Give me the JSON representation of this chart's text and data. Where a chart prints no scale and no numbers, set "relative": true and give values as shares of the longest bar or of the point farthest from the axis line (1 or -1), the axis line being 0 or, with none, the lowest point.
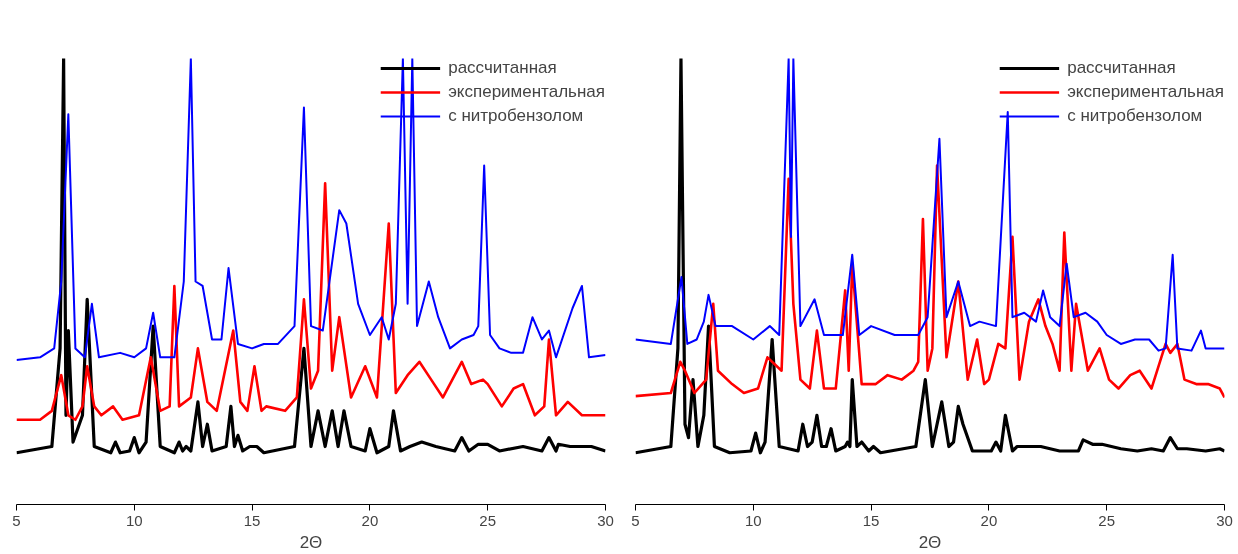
{
  "chart_data": [
    {
      "type": "line",
      "relative": true,
      "xlabel": "2Θ",
      "xlim": [
        5,
        30
      ],
      "xticks": [
        5,
        10,
        15,
        20,
        25,
        30
      ],
      "legend": "top right",
      "tick_labels": "x",
      "series": [
        {
          "name": "рассчитанная",
          "color": "#000000",
          "x": [
            5,
            6.5,
            6.85,
            7.0,
            7.1,
            7.2,
            7.4,
            7.8,
            8.0,
            8.3,
            9.0,
            9.2,
            9.4,
            9.8,
            10.0,
            10.2,
            10.5,
            10.8,
            11.1,
            11.7,
            11.9,
            12.05,
            12.2,
            12.4,
            12.7,
            12.9,
            13.1,
            13.3,
            13.9,
            14.1,
            14.25,
            14.4,
            14.6,
            14.9,
            15.2,
            15.5,
            16.8,
            17.2,
            17.5,
            17.8,
            18.1,
            18.4,
            18.65,
            18.9,
            19.2,
            19.8,
            20.0,
            20.3,
            20.8,
            21.0,
            21.3,
            21.7,
            22.2,
            22.8,
            23.6,
            23.9,
            24.2,
            24.6,
            25.0,
            25.5,
            26.5,
            27.3,
            27.6,
            27.9,
            28.0,
            28.5,
            29.4,
            30
          ],
          "values": [
            0.116,
            0.13,
            0.35,
            1.0,
            0.2,
            0.39,
            0.14,
            0.2,
            0.46,
            0.13,
            0.116,
            0.14,
            0.116,
            0.12,
            0.15,
            0.116,
            0.14,
            0.4,
            0.13,
            0.116,
            0.14,
            0.12,
            0.13,
            0.12,
            0.23,
            0.13,
            0.18,
            0.12,
            0.13,
            0.22,
            0.13,
            0.155,
            0.12,
            0.13,
            0.13,
            0.116,
            0.13,
            0.35,
            0.13,
            0.21,
            0.13,
            0.21,
            0.13,
            0.21,
            0.13,
            0.12,
            0.17,
            0.116,
            0.13,
            0.21,
            0.12,
            0.13,
            0.14,
            0.13,
            0.12,
            0.15,
            0.12,
            0.135,
            0.135,
            0.12,
            0.13,
            0.12,
            0.15,
            0.12,
            0.135,
            0.13,
            0.13,
            0.12
          ]
        },
        {
          "name": "экспериментальная",
          "color": "#ff0000",
          "x": [
            5,
            6.0,
            6.5,
            6.9,
            7.2,
            7.5,
            7.8,
            8.0,
            8.3,
            8.6,
            9.1,
            9.5,
            10.2,
            10.7,
            11.1,
            11.5,
            11.7,
            11.9,
            12.4,
            12.7,
            13.1,
            13.5,
            14.2,
            14.5,
            14.8,
            15.1,
            15.4,
            15.6,
            16.4,
            16.9,
            17.2,
            17.5,
            17.8,
            18.1,
            18.4,
            18.7,
            19.2,
            19.8,
            20.3,
            20.8,
            21.1,
            21.6,
            22.1,
            22.6,
            23.1,
            23.6,
            23.9,
            24.3,
            24.8,
            25.0,
            25.6,
            26.1,
            26.5,
            27.0,
            27.4,
            27.6,
            27.9,
            28.4,
            29.0,
            30
          ],
          "values": [
            0.19,
            0.19,
            0.21,
            0.29,
            0.2,
            0.19,
            0.22,
            0.31,
            0.22,
            0.2,
            0.22,
            0.19,
            0.2,
            0.33,
            0.21,
            0.22,
            0.49,
            0.22,
            0.24,
            0.35,
            0.23,
            0.21,
            0.39,
            0.23,
            0.21,
            0.31,
            0.21,
            0.22,
            0.21,
            0.24,
            0.46,
            0.26,
            0.3,
            0.72,
            0.3,
            0.42,
            0.24,
            0.31,
            0.24,
            0.63,
            0.25,
            0.29,
            0.32,
            0.28,
            0.24,
            0.29,
            0.32,
            0.27,
            0.28,
            0.27,
            0.22,
            0.26,
            0.27,
            0.2,
            0.22,
            0.37,
            0.2,
            0.23,
            0.2,
            0.2
          ]
        },
        {
          "name": "с нитробензолом",
          "color": "#0000ff",
          "x": [
            5,
            6.0,
            6.6,
            6.9,
            7.2,
            7.5,
            7.9,
            8.2,
            8.5,
            9.4,
            10.0,
            10.5,
            10.8,
            11.1,
            11.7,
            12.1,
            12.4,
            12.6,
            12.9,
            13.3,
            13.7,
            14.0,
            14.4,
            15.0,
            15.5,
            16.1,
            16.8,
            17.2,
            17.5,
            18.0,
            18.7,
            19.0,
            19.5,
            20.0,
            20.5,
            20.8,
            21.1,
            21.4,
            21.6,
            21.8,
            22.0,
            22.5,
            22.9,
            23.4,
            23.9,
            24.4,
            24.6,
            24.85,
            25.1,
            25.5,
            26.0,
            26.5,
            26.9,
            27.3,
            27.6,
            27.9,
            28.6,
            29.0,
            29.3,
            30
          ],
          "values": [
            0.324,
            0.33,
            0.35,
            0.5,
            0.875,
            0.35,
            0.33,
            0.45,
            0.33,
            0.34,
            0.33,
            0.35,
            0.43,
            0.33,
            0.33,
            0.5,
            1.0,
            0.5,
            0.49,
            0.37,
            0.37,
            0.53,
            0.36,
            0.35,
            0.36,
            0.36,
            0.4,
            0.89,
            0.4,
            0.39,
            0.66,
            0.63,
            0.45,
            0.38,
            0.42,
            0.37,
            0.45,
            1.0,
            0.45,
            1.0,
            0.4,
            0.5,
            0.42,
            0.35,
            0.37,
            0.38,
            0.4,
            0.76,
            0.38,
            0.35,
            0.34,
            0.34,
            0.42,
            0.37,
            0.39,
            0.33,
            0.44,
            0.49,
            0.33,
            0.335
          ]
        }
      ]
    },
    {
      "type": "line",
      "relative": true,
      "xlabel": "2Θ",
      "xlim": [
        5,
        30
      ],
      "xticks": [
        5,
        10,
        15,
        20,
        25,
        30
      ],
      "legend": "top right",
      "tick_labels": "x",
      "series": [
        {
          "name": "рассчитанная",
          "color": "#000000",
          "x": [
            5,
            6.5,
            6.8,
            6.93,
            7.1,
            7.25,
            7.44,
            7.65,
            7.9,
            8.1,
            8.35,
            9.0,
            9.9,
            10.1,
            10.3,
            10.5,
            10.8,
            11.1,
            11.9,
            12.1,
            12.3,
            12.5,
            12.7,
            12.9,
            13.1,
            13.3,
            13.5,
            13.9,
            14.0,
            14.1,
            14.2,
            14.4,
            14.6,
            14.9,
            15.1,
            15.4,
            16.9,
            17.3,
            17.6,
            18.0,
            18.3,
            18.5,
            18.7,
            18.9,
            19.3,
            20.1,
            20.3,
            20.5,
            20.7,
            21.0,
            21.2,
            21.6,
            22.2,
            23.0,
            23.8,
            24.0,
            24.4,
            24.8,
            25.6,
            26.3,
            26.9,
            27.4,
            27.7,
            28.0,
            28.4,
            29.2,
            29.8,
            30
          ],
          "values": [
            0.116,
            0.13,
            0.35,
            1.0,
            0.18,
            0.15,
            0.28,
            0.13,
            0.2,
            0.4,
            0.13,
            0.116,
            0.12,
            0.16,
            0.116,
            0.14,
            0.37,
            0.13,
            0.12,
            0.18,
            0.13,
            0.14,
            0.2,
            0.13,
            0.13,
            0.17,
            0.12,
            0.13,
            0.14,
            0.13,
            0.28,
            0.13,
            0.14,
            0.12,
            0.13,
            0.116,
            0.13,
            0.28,
            0.13,
            0.23,
            0.13,
            0.14,
            0.22,
            0.18,
            0.12,
            0.12,
            0.14,
            0.12,
            0.2,
            0.12,
            0.13,
            0.13,
            0.13,
            0.12,
            0.12,
            0.145,
            0.135,
            0.135,
            0.125,
            0.12,
            0.125,
            0.12,
            0.15,
            0.125,
            0.125,
            0.12,
            0.125,
            0.12
          ]
        },
        {
          "name": "экспериментальная",
          "color": "#ff0000",
          "x": [
            5,
            6.5,
            6.9,
            7.1,
            7.5,
            8.0,
            8.3,
            8.5,
            9.1,
            9.6,
            10.2,
            10.6,
            11.2,
            11.5,
            11.7,
            12.0,
            12.4,
            12.7,
            13.0,
            13.5,
            13.9,
            14.05,
            14.2,
            14.6,
            15.2,
            15.7,
            16.3,
            16.8,
            17.0,
            17.2,
            17.4,
            17.6,
            17.8,
            18.2,
            18.7,
            19.1,
            19.5,
            19.8,
            20.0,
            20.4,
            20.7,
            21.0,
            21.3,
            21.7,
            22.1,
            22.4,
            22.7,
            23.0,
            23.2,
            23.5,
            23.7,
            24.2,
            24.7,
            25.1,
            25.5,
            26.0,
            26.4,
            26.9,
            27.5,
            27.7,
            28.0,
            28.3,
            28.8,
            29.3,
            29.8,
            30
          ],
          "values": [
            0.243,
            0.25,
            0.32,
            0.3,
            0.25,
            0.28,
            0.45,
            0.3,
            0.27,
            0.25,
            0.26,
            0.33,
            0.3,
            0.73,
            0.45,
            0.28,
            0.26,
            0.39,
            0.26,
            0.26,
            0.48,
            0.3,
            0.54,
            0.27,
            0.27,
            0.29,
            0.28,
            0.3,
            0.32,
            0.64,
            0.3,
            0.35,
            0.76,
            0.33,
            0.5,
            0.28,
            0.37,
            0.27,
            0.28,
            0.36,
            0.35,
            0.6,
            0.28,
            0.41,
            0.46,
            0.4,
            0.36,
            0.3,
            0.61,
            0.3,
            0.45,
            0.3,
            0.35,
            0.28,
            0.26,
            0.29,
            0.3,
            0.26,
            0.36,
            0.34,
            0.36,
            0.28,
            0.27,
            0.27,
            0.26,
            0.24
          ]
        },
        {
          "name": "с нитробензолом",
          "color": "#0000ff",
          "x": [
            5,
            6.5,
            6.95,
            7.2,
            7.6,
            7.9,
            8.1,
            8.4,
            9.1,
            10.0,
            10.7,
            11.1,
            11.5,
            11.6,
            11.7,
            12.0,
            12.6,
            13.0,
            13.8,
            14.2,
            14.5,
            15.0,
            16.0,
            17.0,
            17.4,
            17.9,
            18.2,
            18.7,
            19.2,
            19.6,
            20.3,
            20.8,
            21.0,
            21.5,
            22.0,
            22.3,
            22.6,
            23.0,
            23.3,
            23.6,
            24.1,
            24.6,
            25.0,
            25.6,
            26.2,
            26.8,
            27.2,
            27.5,
            27.8,
            28.0,
            28.6,
            29.0,
            29.2,
            30
          ],
          "values": [
            0.37,
            0.36,
            0.51,
            0.36,
            0.37,
            0.41,
            0.47,
            0.4,
            0.4,
            0.37,
            0.4,
            0.38,
            1.0,
            0.6,
            1.0,
            0.4,
            0.46,
            0.38,
            0.38,
            0.56,
            0.38,
            0.4,
            0.38,
            0.38,
            0.42,
            0.82,
            0.42,
            0.5,
            0.4,
            0.41,
            0.4,
            0.88,
            0.42,
            0.43,
            0.41,
            0.48,
            0.42,
            0.4,
            0.54,
            0.42,
            0.43,
            0.41,
            0.38,
            0.36,
            0.37,
            0.37,
            0.345,
            0.35,
            0.56,
            0.35,
            0.345,
            0.39,
            0.35,
            0.35
          ]
        }
      ]
    }
  ]
}
